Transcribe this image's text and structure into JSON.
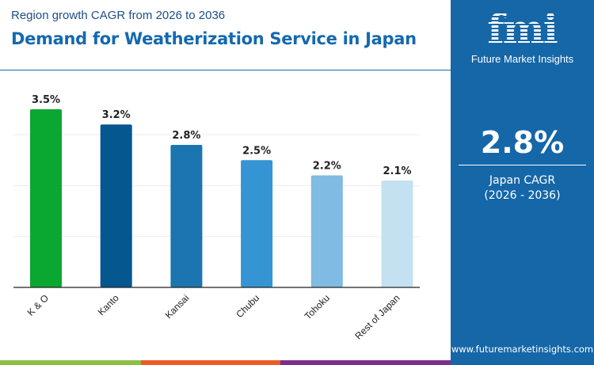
{
  "header": {
    "subtitle": "Region growth CAGR from 2026 to 2036",
    "title": "Demand for Weatherization Service in Japan"
  },
  "chart_data": {
    "type": "bar",
    "title": "Demand for Weatherization Service in Japan",
    "subtitle": "Region growth CAGR from 2026 to 2036",
    "categories": [
      "K & O",
      "Kanto",
      "Kansai",
      "Chubu",
      "Tohoku",
      "Rest of Japan"
    ],
    "values": [
      3.5,
      3.2,
      2.8,
      2.5,
      2.2,
      2.1
    ],
    "labels": [
      "3.5%",
      "3.2%",
      "2.8%",
      "2.5%",
      "2.2%",
      "2.1%"
    ],
    "colors": [
      "#0aa830",
      "#05578f",
      "#1b75b0",
      "#3494d4",
      "#7fbbe2",
      "#c4e1f2"
    ],
    "ylim": [
      0,
      3.5
    ],
    "grid": true,
    "xlabel": "",
    "ylabel": ""
  },
  "panel": {
    "logo_text": "fmi",
    "logo_name": "Future Market Insights",
    "cagr_value": "2.8%",
    "cagr_label": "Japan CAGR",
    "cagr_period": "(2026 - 2036)",
    "url": "www.futuremarketinsights.com"
  },
  "colors": {
    "accent": "#1567a8",
    "stripe": [
      "#8cc043",
      "#ee5a24",
      "#7b2f8c"
    ]
  }
}
